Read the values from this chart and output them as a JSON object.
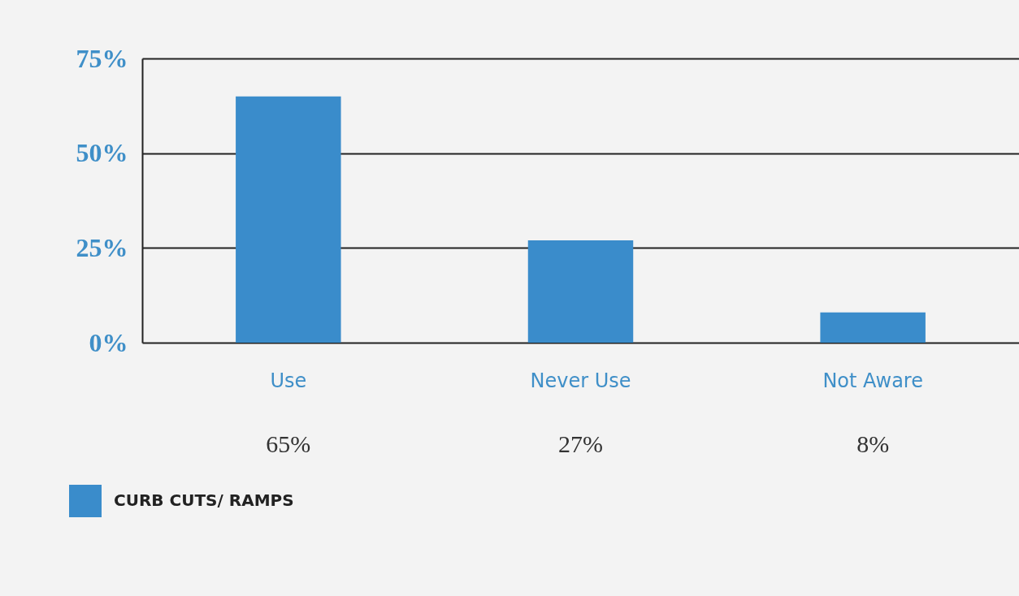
{
  "chart_data": {
    "type": "bar",
    "categories": [
      "Use",
      "Never Use",
      "Not Aware"
    ],
    "series": [
      {
        "name": "CURB CUTS/ RAMPS",
        "color": "#3a8ccb",
        "values": [
          65,
          27,
          8
        ]
      }
    ],
    "value_labels": [
      "65%",
      "27%",
      "8%"
    ],
    "ylim": [
      0,
      75
    ],
    "yticks": [
      {
        "value": 0,
        "label": "0%"
      },
      {
        "value": 25,
        "label": "25%"
      },
      {
        "value": 50,
        "label": "50%"
      },
      {
        "value": 75,
        "label": "75%"
      }
    ],
    "grid": "y",
    "legend": "bottom left"
  }
}
